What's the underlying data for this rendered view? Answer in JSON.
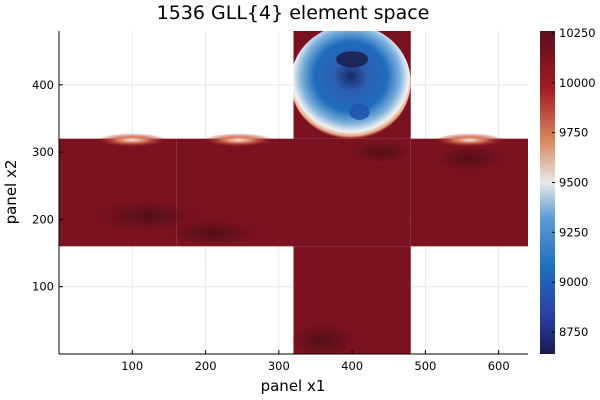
{
  "chart_data": {
    "type": "heatmap",
    "title": "1536 GLL{4} element space",
    "xlabel": "panel x1",
    "ylabel": "panel x2",
    "xlim": [
      0,
      640
    ],
    "ylim": [
      0,
      480
    ],
    "xticks": [
      100,
      200,
      300,
      400,
      500,
      600
    ],
    "yticks": [
      100,
      200,
      300,
      400
    ],
    "grid": true,
    "colorbar": {
      "ticks": [
        8750,
        9000,
        9250,
        9500,
        9750,
        10000,
        10250
      ],
      "range": [
        8640,
        10260
      ],
      "stops": [
        "#1b1c4b",
        "#2a3fa5",
        "#1f6cbd",
        "#5b9bd2",
        "#e8e8e8",
        "#d98a5e",
        "#a11c24",
        "#5a0f1e"
      ],
      "scheme": "diverging blue-white-red (balance)"
    },
    "panels": [
      {
        "x": [
          0,
          160
        ],
        "y": [
          160,
          320
        ]
      },
      {
        "x": [
          160,
          320
        ],
        "y": [
          160,
          320
        ]
      },
      {
        "x": [
          320,
          480
        ],
        "y": [
          160,
          320
        ]
      },
      {
        "x": [
          480,
          640
        ],
        "y": [
          160,
          320
        ]
      },
      {
        "x": [
          320,
          480
        ],
        "y": [
          0,
          160
        ]
      },
      {
        "x": [
          320,
          480
        ],
        "y": [
          320,
          480
        ]
      }
    ],
    "features": [
      {
        "kind": "low",
        "center": [
          398,
          404
        ],
        "value_min": 8700
      },
      {
        "kind": "weak-dip",
        "center": [
          100,
          318
        ]
      },
      {
        "kind": "weak-dip",
        "center": [
          245,
          318
        ]
      },
      {
        "kind": "weak-dip",
        "center": [
          560,
          318
        ]
      }
    ]
  }
}
